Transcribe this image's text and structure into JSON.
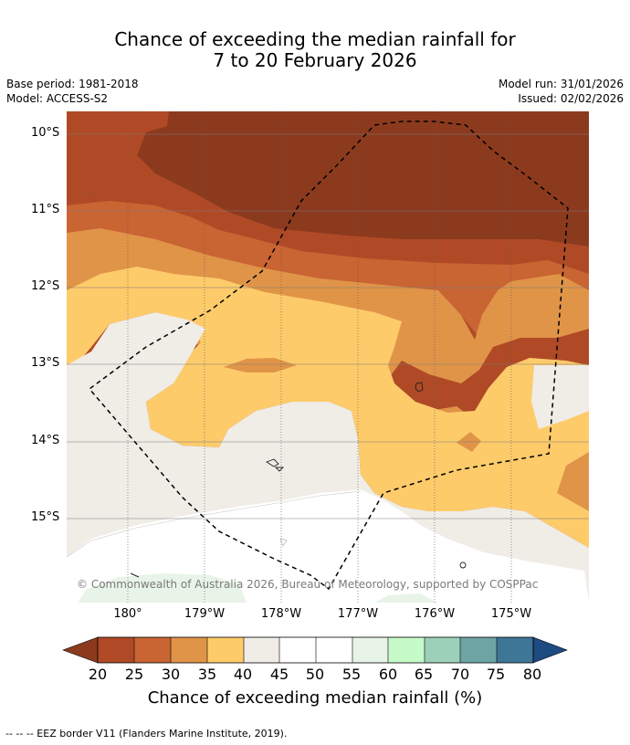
{
  "title_line1": "Chance of exceeding the median rainfall for",
  "title_line2": "7 to 20 February 2026",
  "base_period": "Base period: 1981-2018",
  "model": "Model: ACCESS-S2",
  "model_run": "Model run: 31/01/2026",
  "issued": "Issued: 02/02/2026",
  "lat_labels": [
    "10°S",
    "11°S",
    "12°S",
    "13°S",
    "14°S",
    "15°S"
  ],
  "lon_labels": [
    "180°",
    "179°W",
    "178°W",
    "177°W",
    "176°W",
    "175°W"
  ],
  "copyright": "© Commonwealth of Australia 2026, Bureau of Meteorology, supported by COSPPac",
  "colorbar": {
    "ticks": [
      "20",
      "25",
      "30",
      "35",
      "40",
      "45",
      "50",
      "55",
      "60",
      "65",
      "70",
      "75",
      "80"
    ],
    "colors": [
      "#8c3a1e",
      "#b04a26",
      "#c96433",
      "#e09448",
      "#fdcb6a",
      "#f0ece6",
      "#ffffff",
      "#ffffff",
      "#e8f4e8",
      "#c6fac8",
      "#9dd0b8",
      "#6ea4a4",
      "#3e7698",
      "#1e4a82"
    ],
    "title": "Chance of exceeding median rainfall (%)"
  },
  "footnote": "--  --  -- EEZ border V11 (Flanders Marine Institute, 2019)."
}
